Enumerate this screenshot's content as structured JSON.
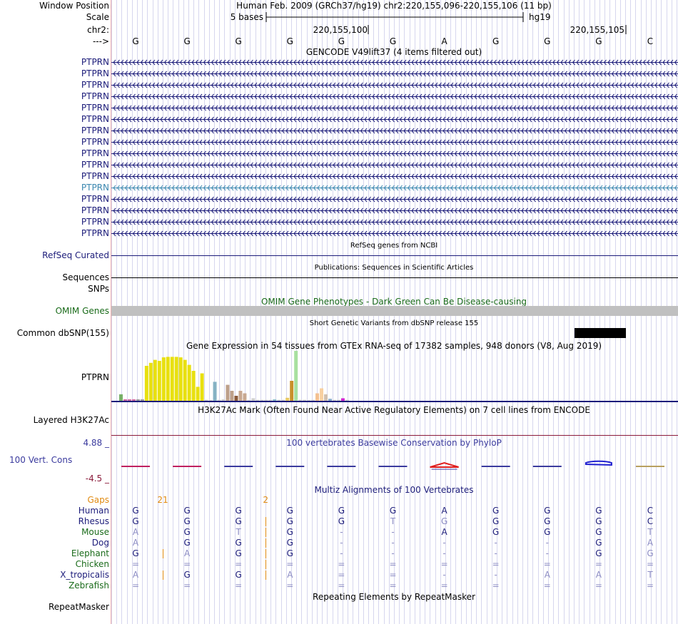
{
  "position": {
    "label": "Window Position",
    "text": "Human Feb. 2009 (GRCh37/hg19)   chr2:220,155,096-220,155,106 (11 bp)"
  },
  "scale": {
    "label": "Scale",
    "left_text": "5 bases",
    "right_text": "hg19"
  },
  "chrom": {
    "label": "chr2:",
    "coord1": "220,155,100",
    "coord2": "220,155,105"
  },
  "strand": {
    "label": "--->",
    "bases": [
      "G",
      "G",
      "G",
      "G",
      "G",
      "G",
      "A",
      "G",
      "G",
      "G",
      "C"
    ]
  },
  "gencode": {
    "title": "GENCODE V49lift37 (4 items filtered out)",
    "label": "PTPRN",
    "rows": 16,
    "highlight_row": 11,
    "color": "#1c1c7a",
    "highlight_color": "#3c88b0"
  },
  "refseq": {
    "title": "RefSeq genes from NCBI",
    "label": "RefSeq Curated",
    "color": "#1c1c7a"
  },
  "publications": {
    "title": "Publications: Sequences in Scientific Articles",
    "label": "Sequences"
  },
  "snps": {
    "label": "SNPs"
  },
  "omim": {
    "title": "OMIM Gene Phenotypes - Dark Green Can Be Disease-causing",
    "label": "OMIM Genes",
    "color": "#1a6b1a",
    "bar_color": "#c0c0c0"
  },
  "dbsnp": {
    "title": "Short Genetic Variants from dbSNP release 155",
    "label": "Common dbSNP(155)"
  },
  "gtex": {
    "title": "Gene Expression in 54 tissues from GTEx RNA-seq of 17382 samples, 948 donors (V8, Aug 2019)",
    "label": "PTPRN",
    "bars": [
      {
        "v": 0.13,
        "c": "#77b067"
      },
      {
        "v": 0.03,
        "c": "#cc66a0"
      },
      {
        "v": 0.03,
        "c": "#cc66a0"
      },
      {
        "v": 0.03,
        "c": "#cc66a0"
      },
      {
        "v": 0.03,
        "c": "#999999"
      },
      {
        "v": 0.03,
        "c": "#999999"
      },
      {
        "v": 0.7,
        "c": "#e8e010"
      },
      {
        "v": 0.76,
        "c": "#e8e010"
      },
      {
        "v": 0.82,
        "c": "#e8e010"
      },
      {
        "v": 0.8,
        "c": "#e8e010"
      },
      {
        "v": 0.87,
        "c": "#e8e010"
      },
      {
        "v": 0.88,
        "c": "#e8e010"
      },
      {
        "v": 0.88,
        "c": "#e8e010"
      },
      {
        "v": 0.88,
        "c": "#e8e010"
      },
      {
        "v": 0.87,
        "c": "#e8e010"
      },
      {
        "v": 0.82,
        "c": "#e8e010"
      },
      {
        "v": 0.72,
        "c": "#e8e010"
      },
      {
        "v": 0.6,
        "c": "#e8e010"
      },
      {
        "v": 0.28,
        "c": "#e8e010"
      },
      {
        "v": 0.55,
        "c": "#e8e010"
      },
      {
        "v": 0.02,
        "c": "#cccccc"
      },
      {
        "v": 0.01,
        "c": "#cccccc"
      },
      {
        "v": 0.38,
        "c": "#86b2c4"
      },
      {
        "v": 0.02,
        "c": "#cccccc"
      },
      {
        "v": 0.03,
        "c": "#cccccc"
      },
      {
        "v": 0.32,
        "c": "#bda08a"
      },
      {
        "v": 0.2,
        "c": "#bda08a"
      },
      {
        "v": 0.1,
        "c": "#8a5a3a"
      },
      {
        "v": 0.2,
        "c": "#c8a890"
      },
      {
        "v": 0.15,
        "c": "#c8a890"
      },
      {
        "v": 0.01,
        "c": "#cccccc"
      },
      {
        "v": 0.05,
        "c": "#cccccc"
      },
      {
        "v": 0.02,
        "c": "#cccccc"
      },
      {
        "v": 0.02,
        "c": "#cccccc"
      },
      {
        "v": 0.02,
        "c": "#cccccc"
      },
      {
        "v": 0.02,
        "c": "#cccccc"
      },
      {
        "v": 0.03,
        "c": "#88b8c8"
      },
      {
        "v": 0.02,
        "c": "#cccccc"
      },
      {
        "v": 0.02,
        "c": "#cccccc"
      },
      {
        "v": 0.06,
        "c": "#e8c860"
      },
      {
        "v": 0.4,
        "c": "#c8902a"
      },
      {
        "v": 1.0,
        "c": "#a8e0a0"
      },
      {
        "v": 0.02,
        "c": "#cccccc"
      },
      {
        "v": 0.02,
        "c": "#cccccc"
      },
      {
        "v": 0.01,
        "c": "#cccccc"
      },
      {
        "v": 0.02,
        "c": "#cccccc"
      },
      {
        "v": 0.15,
        "c": "#f4c090"
      },
      {
        "v": 0.25,
        "c": "#f8d0a0"
      },
      {
        "v": 0.13,
        "c": "#d0c0b0"
      },
      {
        "v": 0.04,
        "c": "#88aacc"
      },
      {
        "v": 0.02,
        "c": "#cccccc"
      },
      {
        "v": 0.02,
        "c": "#cccccc"
      },
      {
        "v": 0.05,
        "c": "#d020d0"
      },
      {
        "v": 0.02,
        "c": "#cccccc"
      }
    ]
  },
  "h3k27ac": {
    "title": "H3K27Ac Mark (Often Found Near Active Regulatory Elements) on 7 cell lines from ENCODE",
    "label": "Layered H3K27Ac"
  },
  "phylop": {
    "title": "100 vertebrates Basewise Conservation by PhyloP",
    "label": "100 Vert. Cons",
    "max_label": "4.88 _",
    "min_label": "-4.5 _",
    "color": "#3b3b9e",
    "values": [
      -0.2,
      -0.05,
      0.12,
      0.08,
      0.05,
      0.06,
      0.3,
      0.05,
      0.05,
      0.85,
      0.02
    ]
  },
  "multiz": {
    "title": "Multiz Alignments of 100 Vertebrates",
    "gaps_label": "Gaps",
    "gap_counts": [
      {
        "after_col": 1,
        "text": "21"
      },
      {
        "after_col": 3,
        "text": "2"
      }
    ],
    "gap_color": "#e08a10",
    "species": [
      {
        "name": "Human",
        "color": "#1c1c7a",
        "bases": [
          "G",
          "G",
          "G",
          "G",
          "G",
          "G",
          "A",
          "G",
          "G",
          "G",
          "C"
        ],
        "dim": [
          false,
          false,
          false,
          false,
          false,
          false,
          false,
          false,
          false,
          false,
          false
        ]
      },
      {
        "name": "Rhesus",
        "color": "#1c1c7a",
        "bases": [
          "G",
          "G",
          "G",
          "G",
          "G",
          "T",
          "G",
          "G",
          "G",
          "G",
          "C"
        ],
        "dim": [
          false,
          false,
          false,
          false,
          false,
          true,
          true,
          false,
          false,
          false,
          false
        ]
      },
      {
        "name": "Mouse",
        "color": "#1a6b1a",
        "bases": [
          "A",
          "G",
          "T",
          "G",
          "-",
          "-",
          "A",
          "G",
          "G",
          "G",
          "T"
        ],
        "dim": [
          true,
          false,
          true,
          false,
          true,
          true,
          false,
          false,
          false,
          false,
          true
        ]
      },
      {
        "name": "Dog",
        "color": "#1c1c7a",
        "bases": [
          "A",
          "G",
          "G",
          "G",
          "-",
          "-",
          "-",
          "-",
          "-",
          "G",
          "A"
        ],
        "dim": [
          true,
          false,
          false,
          false,
          true,
          true,
          true,
          true,
          true,
          false,
          true
        ]
      },
      {
        "name": "Elephant",
        "color": "#1a6b1a",
        "bases": [
          "G",
          "A",
          "G",
          "G",
          "-",
          "-",
          "-",
          "-",
          "-",
          "G",
          "G"
        ],
        "dim": [
          false,
          true,
          false,
          false,
          true,
          true,
          true,
          true,
          true,
          false,
          true
        ]
      },
      {
        "name": "Chicken",
        "color": "#1a6b1a",
        "bases": [
          "=",
          "=",
          "=",
          "=",
          "=",
          "=",
          "=",
          "=",
          "=",
          "=",
          "="
        ],
        "dim": [
          true,
          true,
          true,
          true,
          true,
          true,
          true,
          true,
          true,
          true,
          true
        ]
      },
      {
        "name": "X_tropicalis",
        "color": "#1c1c7a",
        "bases": [
          "A",
          "G",
          "G",
          "A",
          "=",
          "=",
          "-",
          "-",
          "A",
          "A",
          "T"
        ],
        "dim": [
          true,
          false,
          false,
          true,
          true,
          true,
          true,
          true,
          true,
          true,
          true
        ]
      },
      {
        "name": "Zebrafish",
        "color": "#1a6b1a",
        "bases": [
          "=",
          "=",
          "=",
          "=",
          "=",
          "=",
          "=",
          "=",
          "=",
          "=",
          "="
        ],
        "dim": [
          true,
          true,
          true,
          true,
          true,
          true,
          true,
          true,
          true,
          true,
          true
        ]
      }
    ],
    "insertions": [
      {
        "row": 2,
        "after_col": 3
      },
      {
        "row": 3,
        "after_col": 3
      },
      {
        "row": 4,
        "after_col": 1
      },
      {
        "row": 4,
        "after_col": 3
      },
      {
        "row": 5,
        "after_col": 3
      },
      {
        "row": 6,
        "after_col": 1
      },
      {
        "row": 6,
        "after_col": 3
      },
      {
        "row": 1,
        "after_col": 3
      }
    ]
  },
  "repeatmasker": {
    "title": "Repeating Elements by RepeatMasker",
    "label": "RepeatMasker"
  }
}
